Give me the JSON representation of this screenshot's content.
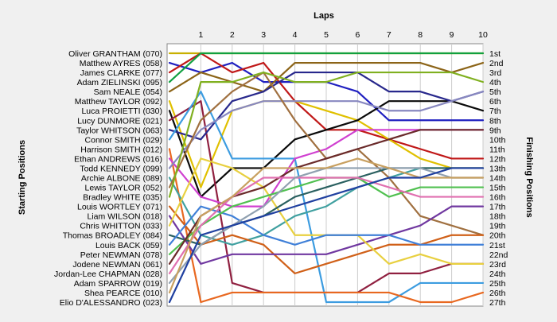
{
  "chart_data": {
    "type": "line",
    "title": "",
    "xlabel": "Laps",
    "ylabel_left": "Starting Positions",
    "ylabel_right": "Finishing Positions",
    "x_ticks": [
      1,
      2,
      3,
      4,
      5,
      6,
      7,
      8,
      9,
      10
    ],
    "xlim": [
      0,
      10
    ],
    "ylim": [
      1,
      27
    ],
    "y_inverted": true,
    "finishing_labels": [
      "1st",
      "2nd",
      "3rd",
      "4th",
      "5th",
      "6th",
      "7th",
      "8th",
      "9th",
      "10th",
      "11th",
      "12th",
      "13th",
      "14th",
      "15th",
      "16th",
      "17th",
      "18th",
      "19th",
      "20th",
      "21st",
      "22nd",
      "23rd",
      "24th",
      "25th",
      "26th",
      "27th"
    ],
    "series": [
      {
        "name": "Oliver GRANTHAM (070)",
        "color": "#c8b000",
        "positions": [
          1,
          1,
          1,
          1,
          1,
          1,
          1,
          1,
          1,
          1,
          1
        ]
      },
      {
        "name": "Matthew AYRES (058)",
        "color": "#2020c0",
        "positions": [
          2,
          3,
          2,
          4,
          4,
          4,
          5,
          8,
          8,
          8,
          8
        ]
      },
      {
        "name": "James CLARKE (077)",
        "color": "#c01818",
        "positions": [
          3,
          1,
          3,
          2,
          6,
          9,
          9,
          10,
          11,
          12,
          12
        ]
      },
      {
        "name": "Adam ZIELINSKI (095)",
        "color": "#10a040",
        "positions": [
          4,
          1,
          1,
          1,
          1,
          1,
          1,
          1,
          1,
          1,
          1
        ]
      },
      {
        "name": "Sam NEALE (054)",
        "color": "#8c6418",
        "positions": [
          5,
          3,
          4,
          5,
          2,
          2,
          2,
          2,
          2,
          3,
          2
        ]
      },
      {
        "name": "Matthew TAYLOR (092)",
        "color": "#e0c000",
        "positions": [
          6,
          15,
          7,
          6,
          6,
          7,
          8,
          10,
          12,
          13,
          13
        ]
      },
      {
        "name": "Luca PROIETTI (030)",
        "color": "#0a0a0a",
        "positions": [
          7,
          16,
          13,
          13,
          10,
          9,
          8,
          6,
          6,
          6,
          7
        ]
      },
      {
        "name": "Lucy DUNMORE (021)",
        "color": "#902040",
        "positions": [
          8,
          6,
          25,
          26,
          26,
          26,
          26,
          24,
          24,
          23,
          23
        ]
      },
      {
        "name": "Taylor WHITSON (063)",
        "color": "#28288c",
        "positions": [
          9,
          10,
          6,
          5,
          3,
          3,
          3,
          5,
          5,
          6,
          5
        ]
      },
      {
        "name": "Connor SMITH (029)",
        "color": "#3c9ce0",
        "positions": [
          10,
          5,
          12,
          12,
          12,
          27,
          27,
          27,
          25,
          25,
          25
        ]
      },
      {
        "name": "Harrison SMITH (012)",
        "color": "#e86820",
        "positions": [
          11,
          27,
          26,
          26,
          26,
          26,
          26,
          26,
          27,
          27,
          26
        ]
      },
      {
        "name": "Ethan ANDREWS (016)",
        "color": "#d040d0",
        "positions": [
          12,
          16,
          17,
          17,
          12,
          11,
          9,
          9,
          9,
          9,
          9
        ]
      },
      {
        "name": "Todd KENNEDY (099)",
        "color": "#8888c0",
        "positions": [
          13,
          9,
          7,
          6,
          6,
          6,
          6,
          7,
          7,
          6,
          5
        ]
      },
      {
        "name": "Archie ALBONE (089)",
        "color": "#40a0a0",
        "positions": [
          14,
          20,
          21,
          20,
          18,
          17,
          15,
          14,
          13,
          13,
          13
        ]
      },
      {
        "name": "Lewis TAYLOR (052)",
        "color": "#a07040",
        "positions": [
          15,
          8,
          5,
          3,
          8,
          12,
          11,
          14,
          18,
          19,
          20
        ]
      },
      {
        "name": "Bradley WHITE (035)",
        "color": "#80b020",
        "positions": [
          16,
          4,
          4,
          3,
          4,
          4,
          3,
          3,
          3,
          3,
          4
        ]
      },
      {
        "name": "Louis WORTLEY (071)",
        "color": "#d06018",
        "positions": [
          17,
          21,
          20,
          21,
          24,
          23,
          22,
          21,
          21,
          20,
          20
        ]
      },
      {
        "name": "Liam WILSON (018)",
        "color": "#7038a0",
        "positions": [
          18,
          23,
          22,
          22,
          22,
          22,
          21,
          20,
          19,
          17,
          17
        ]
      },
      {
        "name": "Chris WHITTON (033)",
        "color": "#e8d040",
        "positions": [
          19,
          12,
          13,
          15,
          20,
          20,
          20,
          23,
          22,
          23,
          23
        ]
      },
      {
        "name": "Thomas BROADLEY (084)",
        "color": "#2a6060",
        "positions": [
          20,
          21,
          19,
          18,
          16,
          15,
          14,
          13,
          13,
          13,
          13
        ]
      },
      {
        "name": "Louis BACK (059)",
        "color": "#4080d8",
        "positions": [
          21,
          17,
          18,
          20,
          21,
          20,
          20,
          20,
          21,
          21,
          21
        ]
      },
      {
        "name": "Peter NEWMAN (078)",
        "color": "#50c050",
        "positions": [
          22,
          19,
          17,
          16,
          15,
          14,
          14,
          16,
          15,
          15,
          15
        ]
      },
      {
        "name": "Jodene NEWMAN (061)",
        "color": "#6a2a2a",
        "positions": [
          23,
          18,
          16,
          15,
          13,
          12,
          11,
          10,
          9,
          9,
          9
        ]
      },
      {
        "name": "Jordan-Lee CHAPMAN (028)",
        "color": "#e070b0",
        "positions": [
          24,
          19,
          16,
          14,
          14,
          14,
          14,
          15,
          16,
          16,
          16
        ]
      },
      {
        "name": "Adam SPARROW (019)",
        "color": "#90a0b0",
        "positions": [
          25,
          21,
          19,
          17,
          14,
          13,
          13,
          13,
          13,
          14,
          14
        ]
      },
      {
        "name": "Shea PEARCE (010)",
        "color": "#c8a060",
        "positions": [
          26,
          18,
          16,
          13,
          13,
          13,
          12,
          13,
          14,
          14,
          14
        ]
      },
      {
        "name": "Elio D'ALESSANDRO (023)",
        "color": "#2040a0",
        "positions": [
          27,
          20,
          19,
          18,
          17,
          16,
          15,
          14,
          14,
          13,
          13
        ]
      }
    ]
  }
}
